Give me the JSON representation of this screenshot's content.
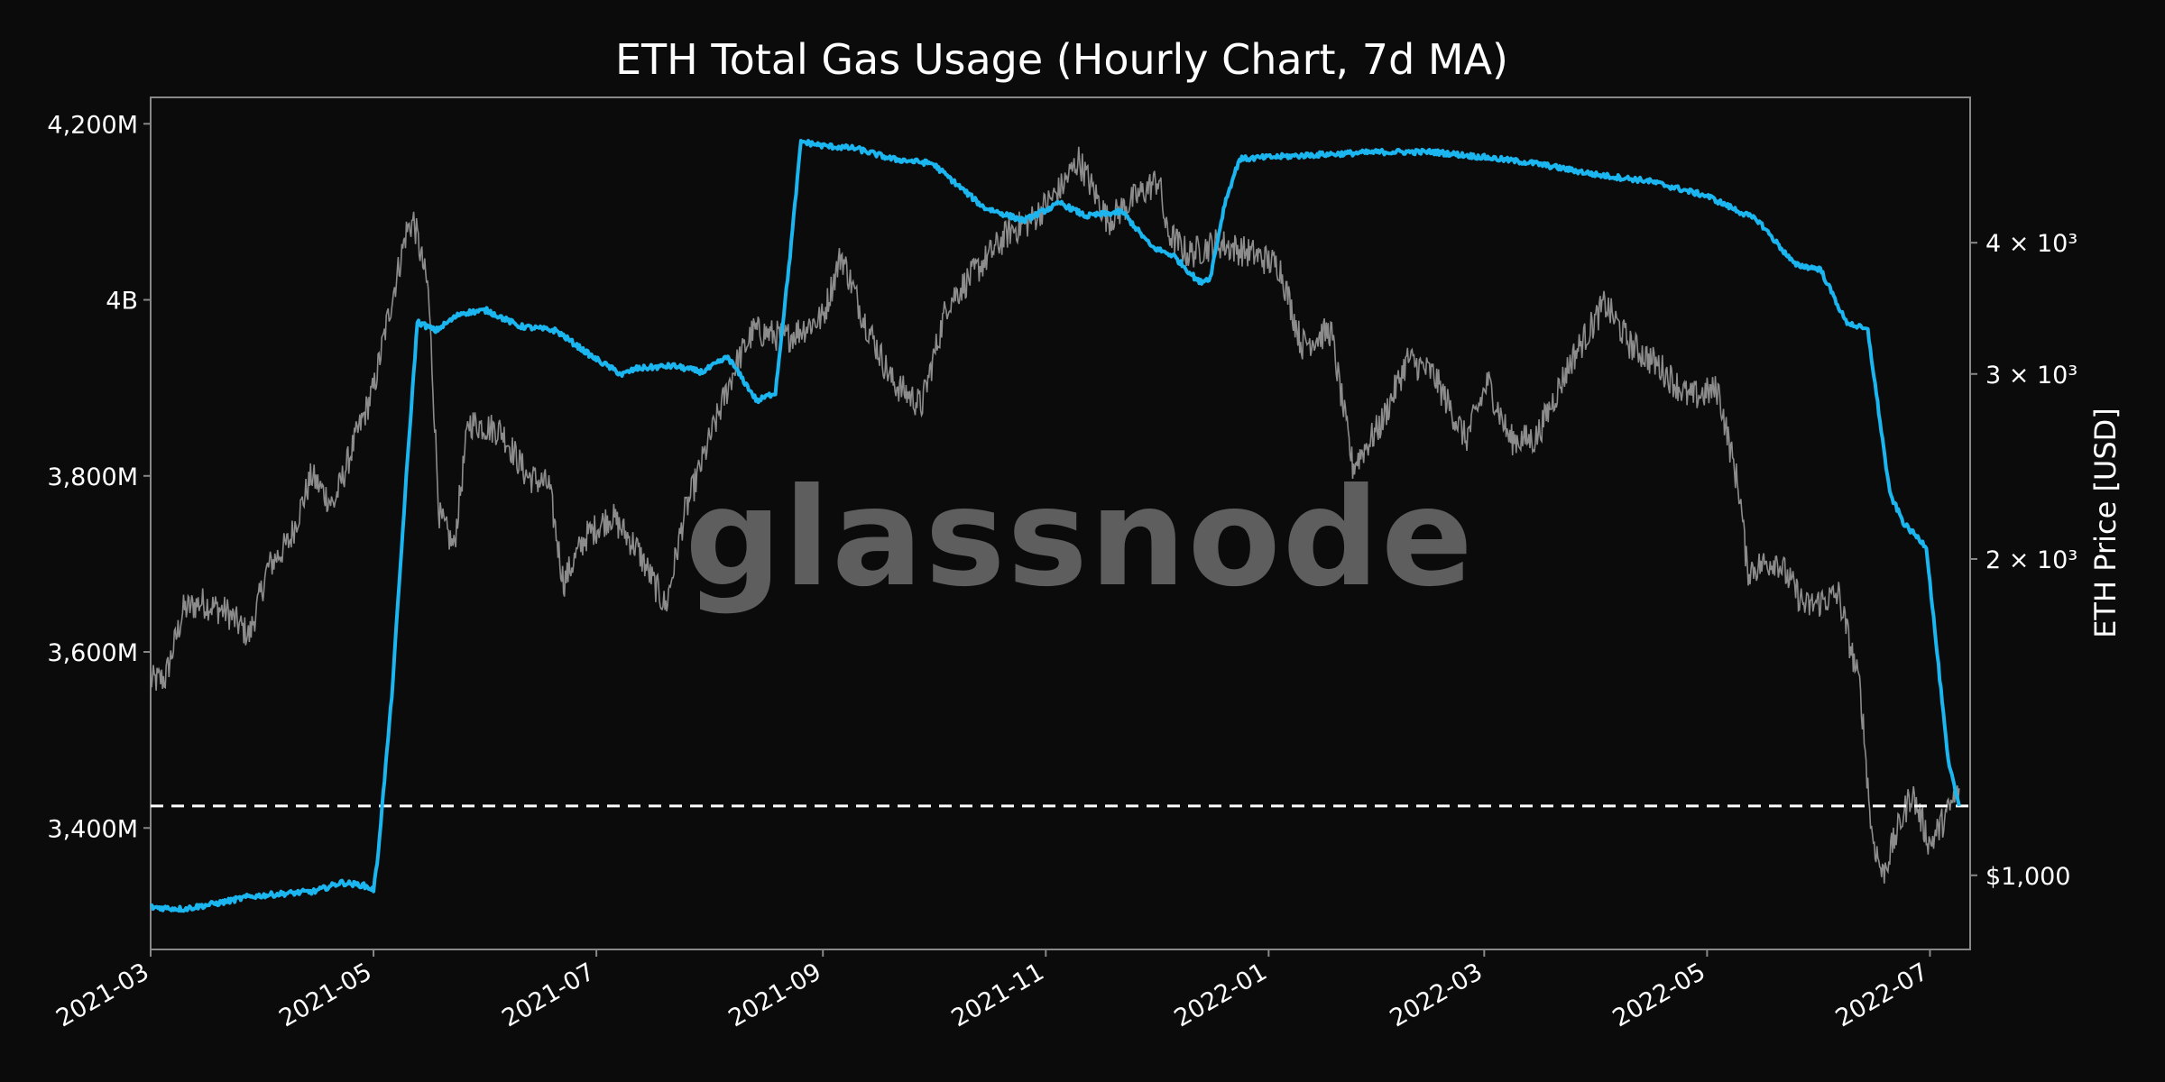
{
  "chart_data": {
    "type": "line",
    "title": "ETH Total Gas Usage (Hourly Chart, 7d MA)",
    "watermark": "glassnode",
    "xlabel": "",
    "ylabel_left": "",
    "ylabel_right": "ETH Price [USD]",
    "x_range": [
      "2021-03-01",
      "2022-07-12"
    ],
    "x_ticks": [
      {
        "date": "2021-03-01",
        "label": "2021-03"
      },
      {
        "date": "2021-05-01",
        "label": "2021-05"
      },
      {
        "date": "2021-07-01",
        "label": "2021-07"
      },
      {
        "date": "2021-09-01",
        "label": "2021-09"
      },
      {
        "date": "2021-11-01",
        "label": "2021-11"
      },
      {
        "date": "2022-01-01",
        "label": "2022-01"
      },
      {
        "date": "2022-03-01",
        "label": "2022-03"
      },
      {
        "date": "2022-05-01",
        "label": "2022-05"
      },
      {
        "date": "2022-07-01",
        "label": "2022-07"
      }
    ],
    "left_axis": {
      "range": [
        3262,
        4230
      ],
      "scale": "linear",
      "ticks": [
        {
          "value": 3400,
          "label": "3,400M"
        },
        {
          "value": 3600,
          "label": "3,600M"
        },
        {
          "value": 3800,
          "label": "3,800M"
        },
        {
          "value": 4000,
          "label": "4B"
        },
        {
          "value": 4200,
          "label": "4,200M"
        }
      ]
    },
    "right_axis": {
      "range": [
        850,
        5500
      ],
      "scale": "log",
      "ticks": [
        {
          "value": 1000,
          "label": "$1,000"
        },
        {
          "value": 2000,
          "label": "2 × 10³"
        },
        {
          "value": 3000,
          "label": "3 × 10³"
        },
        {
          "value": 4000,
          "label": "4 × 10³"
        }
      ]
    },
    "reference_line": {
      "axis": "left",
      "value": 3425,
      "style": "dashed",
      "color": "#ffffff"
    },
    "grid": false,
    "colors": {
      "background": "#0b0b0b",
      "gas": "#1bb6f0",
      "price": "#8c8c8c",
      "frame": "#888888",
      "watermark": "#5e5e5e"
    },
    "series": [
      {
        "axis": "left",
        "color": "#1bb6f0",
        "points": [
          [
            "2021-03-01",
            3310
          ],
          [
            "2021-03-10",
            3308
          ],
          [
            "2021-03-20",
            3315
          ],
          [
            "2021-03-28",
            3322
          ],
          [
            "2021-04-05",
            3325
          ],
          [
            "2021-04-15",
            3328
          ],
          [
            "2021-04-22",
            3338
          ],
          [
            "2021-04-28",
            3335
          ],
          [
            "2021-05-01",
            3330
          ],
          [
            "2021-05-02",
            3360
          ],
          [
            "2021-05-06",
            3550
          ],
          [
            "2021-05-10",
            3800
          ],
          [
            "2021-05-13",
            3975
          ],
          [
            "2021-05-18",
            3965
          ],
          [
            "2021-05-25",
            3985
          ],
          [
            "2021-06-01",
            3988
          ],
          [
            "2021-06-10",
            3970
          ],
          [
            "2021-06-20",
            3965
          ],
          [
            "2021-06-30",
            3935
          ],
          [
            "2021-07-08",
            3915
          ],
          [
            "2021-07-12",
            3922
          ],
          [
            "2021-07-22",
            3925
          ],
          [
            "2021-07-30",
            3918
          ],
          [
            "2021-08-06",
            3935
          ],
          [
            "2021-08-14",
            3885
          ],
          [
            "2021-08-19",
            3895
          ],
          [
            "2021-08-23",
            4050
          ],
          [
            "2021-08-26",
            4180
          ],
          [
            "2021-09-01",
            4175
          ],
          [
            "2021-09-10",
            4172
          ],
          [
            "2021-09-20",
            4160
          ],
          [
            "2021-10-01",
            4155
          ],
          [
            "2021-10-08",
            4130
          ],
          [
            "2021-10-15",
            4105
          ],
          [
            "2021-10-26",
            4090
          ],
          [
            "2021-11-05",
            4110
          ],
          [
            "2021-11-12",
            4095
          ],
          [
            "2021-11-22",
            4100
          ],
          [
            "2021-11-30",
            4060
          ],
          [
            "2021-12-06",
            4050
          ],
          [
            "2021-12-13",
            4020
          ],
          [
            "2021-12-16",
            4025
          ],
          [
            "2021-12-20",
            4110
          ],
          [
            "2021-12-24",
            4160
          ],
          [
            "2022-01-01",
            4162
          ],
          [
            "2022-01-15",
            4165
          ],
          [
            "2022-02-01",
            4168
          ],
          [
            "2022-02-15",
            4168
          ],
          [
            "2022-03-01",
            4162
          ],
          [
            "2022-03-15",
            4155
          ],
          [
            "2022-04-01",
            4142
          ],
          [
            "2022-04-15",
            4135
          ],
          [
            "2022-05-01",
            4118
          ],
          [
            "2022-05-10",
            4100
          ],
          [
            "2022-05-15",
            4090
          ],
          [
            "2022-05-25",
            4040
          ],
          [
            "2022-06-01",
            4035
          ],
          [
            "2022-06-08",
            3975
          ],
          [
            "2022-06-14",
            3965
          ],
          [
            "2022-06-20",
            3780
          ],
          [
            "2022-06-24",
            3745
          ],
          [
            "2022-06-30",
            3720
          ],
          [
            "2022-07-06",
            3475
          ],
          [
            "2022-07-09",
            3425
          ]
        ]
      },
      {
        "axis": "right",
        "color": "#8c8c8c",
        "points": [
          [
            "2021-03-01",
            1530
          ],
          [
            "2021-03-05",
            1540
          ],
          [
            "2021-03-10",
            1790
          ],
          [
            "2021-03-15",
            1820
          ],
          [
            "2021-03-22",
            1780
          ],
          [
            "2021-03-28",
            1690
          ],
          [
            "2021-04-02",
            1960
          ],
          [
            "2021-04-08",
            2080
          ],
          [
            "2021-04-14",
            2400
          ],
          [
            "2021-04-20",
            2250
          ],
          [
            "2021-04-26",
            2600
          ],
          [
            "2021-05-01",
            2900
          ],
          [
            "2021-05-05",
            3400
          ],
          [
            "2021-05-10",
            4100
          ],
          [
            "2021-05-12",
            4200
          ],
          [
            "2021-05-16",
            3600
          ],
          [
            "2021-05-19",
            2200
          ],
          [
            "2021-05-23",
            2050
          ],
          [
            "2021-05-27",
            2700
          ],
          [
            "2021-06-05",
            2650
          ],
          [
            "2021-06-12",
            2400
          ],
          [
            "2021-06-18",
            2350
          ],
          [
            "2021-06-22",
            1900
          ],
          [
            "2021-06-28",
            2100
          ],
          [
            "2021-07-05",
            2200
          ],
          [
            "2021-07-12",
            2050
          ],
          [
            "2021-07-20",
            1800
          ],
          [
            "2021-07-25",
            2200
          ],
          [
            "2021-08-01",
            2600
          ],
          [
            "2021-08-08",
            3050
          ],
          [
            "2021-08-13",
            3300
          ],
          [
            "2021-08-22",
            3250
          ],
          [
            "2021-09-01",
            3400
          ],
          [
            "2021-09-06",
            3900
          ],
          [
            "2021-09-12",
            3400
          ],
          [
            "2021-09-20",
            2950
          ],
          [
            "2021-09-28",
            2800
          ],
          [
            "2021-10-05",
            3500
          ],
          [
            "2021-10-14",
            3800
          ],
          [
            "2021-10-22",
            4100
          ],
          [
            "2021-10-28",
            4200
          ],
          [
            "2021-11-05",
            4500
          ],
          [
            "2021-11-10",
            4800
          ],
          [
            "2021-11-18",
            4200
          ],
          [
            "2021-11-25",
            4400
          ],
          [
            "2021-12-02",
            4600
          ],
          [
            "2021-12-04",
            4100
          ],
          [
            "2021-12-10",
            3900
          ],
          [
            "2021-12-18",
            4000
          ],
          [
            "2021-12-28",
            3900
          ],
          [
            "2022-01-04",
            3800
          ],
          [
            "2022-01-10",
            3200
          ],
          [
            "2022-01-18",
            3300
          ],
          [
            "2022-01-24",
            2450
          ],
          [
            "2022-02-01",
            2700
          ],
          [
            "2022-02-08",
            3100
          ],
          [
            "2022-02-15",
            3000
          ],
          [
            "2022-02-24",
            2600
          ],
          [
            "2022-03-02",
            2950
          ],
          [
            "2022-03-08",
            2600
          ],
          [
            "2022-03-15",
            2600
          ],
          [
            "2022-03-25",
            3100
          ],
          [
            "2022-04-03",
            3500
          ],
          [
            "2022-04-10",
            3200
          ],
          [
            "2022-04-18",
            3050
          ],
          [
            "2022-04-26",
            2850
          ],
          [
            "2022-05-04",
            2900
          ],
          [
            "2022-05-10",
            2300
          ],
          [
            "2022-05-12",
            1950
          ],
          [
            "2022-05-20",
            2000
          ],
          [
            "2022-05-28",
            1800
          ],
          [
            "2022-06-06",
            1850
          ],
          [
            "2022-06-12",
            1500
          ],
          [
            "2022-06-15",
            1100
          ],
          [
            "2022-06-18",
            1000
          ],
          [
            "2022-06-22",
            1100
          ],
          [
            "2022-06-26",
            1200
          ],
          [
            "2022-07-01",
            1070
          ],
          [
            "2022-07-06",
            1150
          ],
          [
            "2022-07-09",
            1210
          ]
        ]
      }
    ]
  }
}
